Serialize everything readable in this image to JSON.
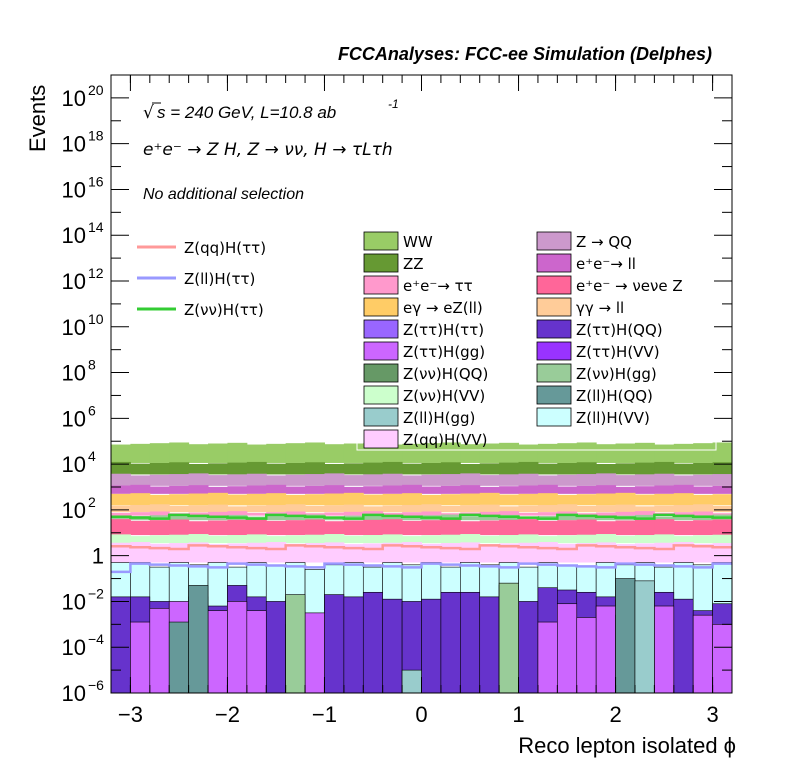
{
  "chart_data": {
    "type": "histogram-stacked",
    "title": "FCCAnalyses: FCC-ee Simulation (Delphes)",
    "xlabel": "Reco lepton isolated ϕ",
    "ylabel": "Events",
    "xlim": [
      -3.2,
      3.2
    ],
    "ylim": [
      1e-06,
      1e+21
    ],
    "yscale": "log",
    "x_ticks": [
      "−3",
      "−2",
      "−1",
      "0",
      "1",
      "2",
      "3"
    ],
    "x_tick_values": [
      -3,
      -2,
      -1,
      0,
      1,
      2,
      3
    ],
    "y_ticks": [
      {
        "exp": -6,
        "base": "10",
        "power": "−6"
      },
      {
        "exp": -4,
        "base": "10",
        "power": "−4"
      },
      {
        "exp": -2,
        "base": "10",
        "power": "−2"
      },
      {
        "exp": 0,
        "base": "1",
        "power": ""
      },
      {
        "exp": 2,
        "base": "10",
        "power": "2"
      },
      {
        "exp": 4,
        "base": "10",
        "power": "4"
      },
      {
        "exp": 6,
        "base": "10",
        "power": "6"
      },
      {
        "exp": 8,
        "base": "10",
        "power": "8"
      },
      {
        "exp": 10,
        "base": "10",
        "power": "10"
      },
      {
        "exp": 12,
        "base": "10",
        "power": "12"
      },
      {
        "exp": 14,
        "base": "10",
        "power": "14"
      },
      {
        "exp": 16,
        "base": "10",
        "power": "16"
      },
      {
        "exp": 18,
        "base": "10",
        "power": "18"
      },
      {
        "exp": 20,
        "base": "10",
        "power": "20"
      }
    ],
    "annotations": {
      "energy": "s = 240 GeV, L=10.8 ab",
      "energy_exp": "-1",
      "process": "e⁺e⁻ → Z H, Z → νν, H → τLτh",
      "selection": "No additional selection"
    },
    "n_bins": 32,
    "stack_levels_log10": [
      {
        "name": "WW",
        "color": "#99cc66",
        "top": 4.9
      },
      {
        "name": "ZZ",
        "color": "#669933",
        "top": 4.05
      },
      {
        "name": "Z → QQ",
        "color": "#cc99cc",
        "top": 3.55
      },
      {
        "name": "e⁺e⁻ → ll",
        "color": "#cc66cc",
        "top": 3.05
      },
      {
        "name": "eγ → eZ(ll)",
        "color": "#ffcc66",
        "top": 2.7
      },
      {
        "name": "γγ → ll",
        "color": "#ffcc99",
        "top": 2.2
      },
      {
        "name": "e⁺e⁻ → ττ",
        "color": "#ff99cc",
        "top": 1.9
      },
      {
        "name": "Z(νν)H(gg)",
        "color": "#99cc99",
        "top": 1.75
      },
      {
        "name": "e⁺e⁻ → νeνe Z",
        "color": "#ff6699",
        "top": 1.55
      },
      {
        "name": "Z(νν)H(VV)",
        "color": "#ccffcc",
        "top": 0.9
      },
      {
        "name": "Z(qq)H(VV)",
        "color": "#ffccff",
        "top": 0.55
      }
    ],
    "series": [
      {
        "name": "WW",
        "color": "#99cc66"
      },
      {
        "name": "Z → QQ",
        "color": "#cc99cc"
      },
      {
        "name": "ZZ",
        "color": "#669933"
      },
      {
        "name": "e⁺e⁻→ ll",
        "color": "#cc66cc"
      },
      {
        "name": "e⁺e⁻→ ττ",
        "color": "#ff99cc"
      },
      {
        "name": "e⁺e⁻ → νeνe Z",
        "color": "#ff6699"
      },
      {
        "name": "eγ → eZ(ll)",
        "color": "#ffcc66"
      },
      {
        "name": "γγ → ll",
        "color": "#ffcc99"
      },
      {
        "name": "Z(ττ)H(ττ)",
        "color": "#9966ff"
      },
      {
        "name": "Z(ττ)H(QQ)",
        "color": "#6633cc"
      },
      {
        "name": "Z(ττ)H(gg)",
        "color": "#cc66ff"
      },
      {
        "name": "Z(ττ)H(VV)",
        "color": "#9933ff"
      },
      {
        "name": "Z(νν)H(QQ)",
        "color": "#669966"
      },
      {
        "name": "Z(νν)H(gg)",
        "color": "#99cc99"
      },
      {
        "name": "Z(νν)H(VV)",
        "color": "#ccffcc"
      },
      {
        "name": "Z(ll)H(QQ)",
        "color": "#669999"
      },
      {
        "name": "Z(ll)H(gg)",
        "color": "#99cccc"
      },
      {
        "name": "Z(ll)H(VV)",
        "color": "#ccffff"
      },
      {
        "name": "Z(qq)H(VV)",
        "color": "#ffccff"
      }
    ],
    "signals": [
      {
        "name": "Z(qq)H(ττ)",
        "color": "#ff9999",
        "level_log10": 0.35
      },
      {
        "name": "Z(ll)H(ττ)",
        "color": "#9999ff",
        "level_log10": -0.45
      },
      {
        "name": "Z(νν)H(ττ)",
        "color": "#33cc33",
        "level_log10": 1.7
      }
    ],
    "low_bins": {
      "ccffff_top_log10": [
        -0.3,
        -0.3,
        -0.5,
        -0.3,
        -0.4,
        -0.3,
        -0.5,
        -0.3,
        -0.4,
        -0.3,
        -0.6,
        -0.4,
        -0.3,
        -0.5,
        -0.3,
        -0.4,
        -0.3,
        -0.5,
        -0.3,
        -0.4,
        -0.3,
        -0.5,
        -0.3,
        -0.4,
        -0.5,
        -0.3,
        -0.4,
        -0.3,
        -0.5,
        -0.3,
        -0.4,
        -0.3
      ],
      "purple_top_log10": [
        -1.8,
        -1.8,
        -2.0,
        -2.1,
        -1.8,
        -2.2,
        -1.3,
        -1.8,
        -2.0,
        -1.8,
        -3.0,
        -1.7,
        -1.8,
        -1.6,
        -1.9,
        -2.0,
        -1.9,
        -1.6,
        -1.6,
        -1.8,
        -1.8,
        -2.0,
        -1.4,
        -1.5,
        -1.6,
        -1.8,
        -1.9,
        -1.9,
        -1.6,
        -1.9,
        -2.4,
        -2.1
      ],
      "violet_top_log10": [
        -6,
        -2.9,
        -2.3,
        -2.0,
        -2.1,
        -2.4,
        -2.0,
        -2.4,
        -6,
        -3.0,
        -2.5,
        -6,
        -6,
        -6,
        -6,
        -6,
        -6,
        -6,
        -6,
        -6,
        -6,
        -6,
        -2.9,
        -2.1,
        -2.7,
        -2.2,
        -2.6,
        -6,
        -2.2,
        -6,
        -2.6,
        -3.0
      ],
      "dark_teal_top_log10": [
        -6,
        -6,
        -6,
        -2.9,
        -1.3,
        -6,
        -6,
        -6,
        -6,
        -6,
        -6,
        -6,
        -6,
        -6,
        -6,
        -6,
        -6,
        -6,
        -6,
        -6,
        -1.3,
        -6,
        -6,
        -6,
        -6,
        -6,
        -1.0,
        -6,
        -6,
        -6,
        -6,
        -6
      ],
      "green_top_log10": [
        -6,
        -6,
        -6,
        -6,
        -6,
        -6,
        -6,
        -6,
        -6,
        -1.7,
        -6,
        -6,
        -6,
        -6,
        -6,
        -6,
        -6,
        -6,
        -6,
        -6,
        -1.2,
        -6,
        -6,
        -6,
        -6,
        -6,
        -6,
        -6,
        -6,
        -6,
        -6,
        -6
      ],
      "light_teal_top_log10": [
        -6,
        -6,
        -6,
        -6,
        -6,
        -6,
        -6,
        -6,
        -6,
        -6,
        -6,
        -6,
        -6,
        -6,
        -6,
        -5.0,
        -6,
        -6,
        -6,
        -6,
        -6,
        -6,
        -6,
        -6,
        -6,
        -6,
        -6,
        -1.1,
        -6,
        -6,
        -6,
        -6
      ]
    }
  }
}
